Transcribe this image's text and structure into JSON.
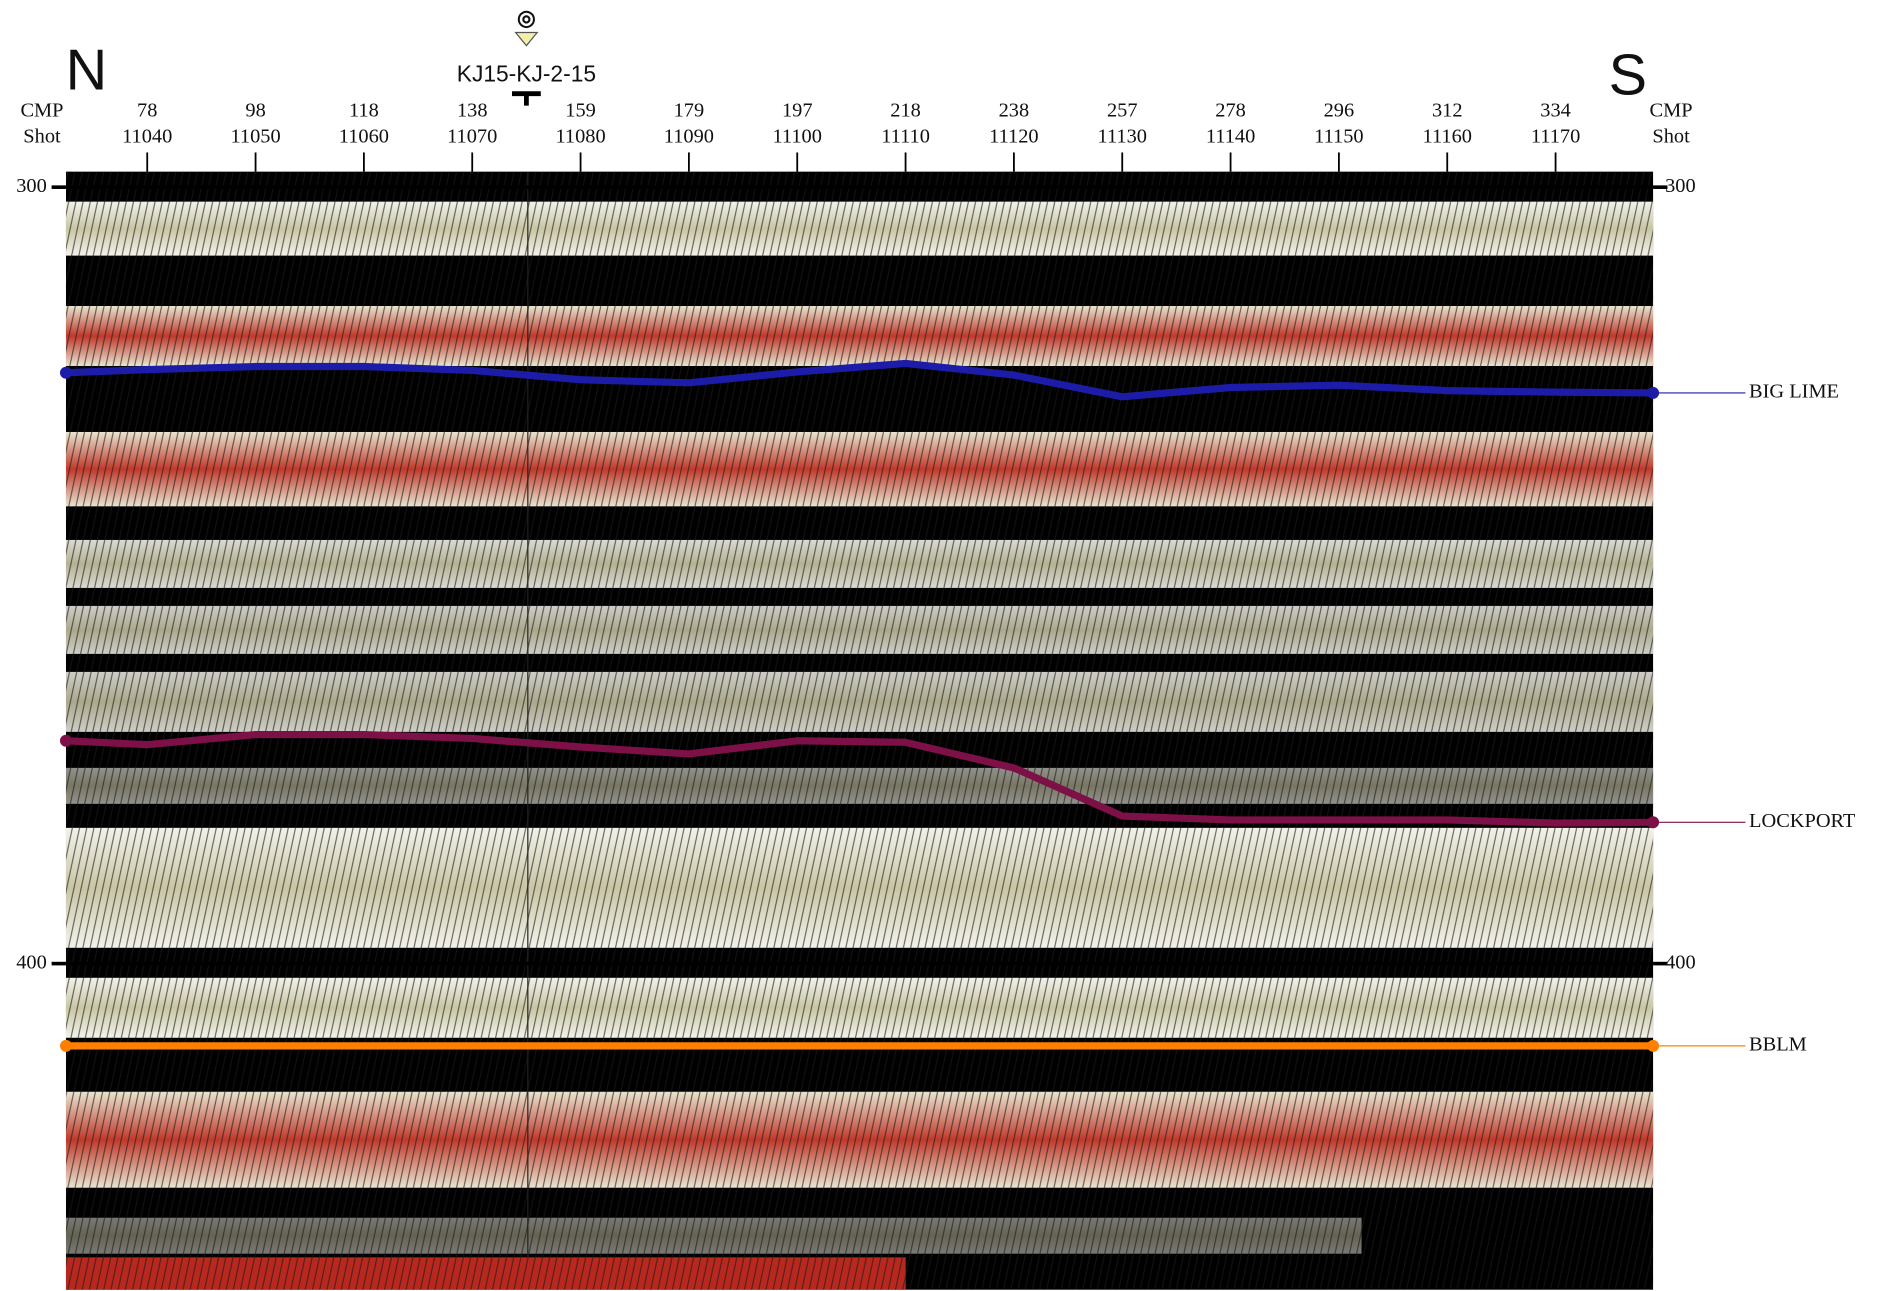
{
  "chart_data": {
    "type": "seismic",
    "left_direction": "N",
    "right_direction": "S",
    "x_row_labels": [
      "CMP",
      "Shot"
    ],
    "well_label": "KJ15-KJ-2-15",
    "well_x": 11075,
    "xlim": [
      11032.5,
      11179
    ],
    "ylim": [
      298,
      442
    ],
    "xticks": [
      11040,
      11050,
      11060,
      11070,
      11080,
      11090,
      11100,
      11110,
      11120,
      11130,
      11140,
      11150,
      11160,
      11170
    ],
    "cmp": [
      78,
      98,
      118,
      138,
      159,
      179,
      197,
      218,
      238,
      257,
      278,
      296,
      312,
      334
    ],
    "yticks": [
      300,
      400
    ],
    "grid": true,
    "x": [
      11032.5,
      11040,
      11050,
      11060,
      11070,
      11080,
      11090,
      11100,
      11110,
      11120,
      11130,
      11140,
      11150,
      11160,
      11170,
      11179
    ],
    "series": [
      {
        "name": "BIG LIME",
        "color": "#1c1ca8",
        "values": [
          323.9,
          323.5,
          323.1,
          323.1,
          323.6,
          324.8,
          325.2,
          323.8,
          322.7,
          324.2,
          327.0,
          325.8,
          325.5,
          326.2,
          326.4,
          326.5
        ]
      },
      {
        "name": "LOCKPORT",
        "color": "#7d1046",
        "values": [
          371.3,
          371.8,
          370.5,
          370.5,
          371.0,
          372.1,
          373.0,
          371.3,
          371.5,
          374.8,
          381.0,
          381.5,
          381.5,
          381.5,
          381.9,
          381.8
        ]
      },
      {
        "name": "BBLM",
        "color": "#ff8000",
        "values": [
          410.6,
          410.6,
          410.6,
          410.6,
          410.6,
          410.6,
          410.6,
          410.6,
          410.6,
          410.6,
          410.6,
          410.6,
          410.6,
          410.6,
          410.6,
          410.6
        ]
      }
    ]
  }
}
